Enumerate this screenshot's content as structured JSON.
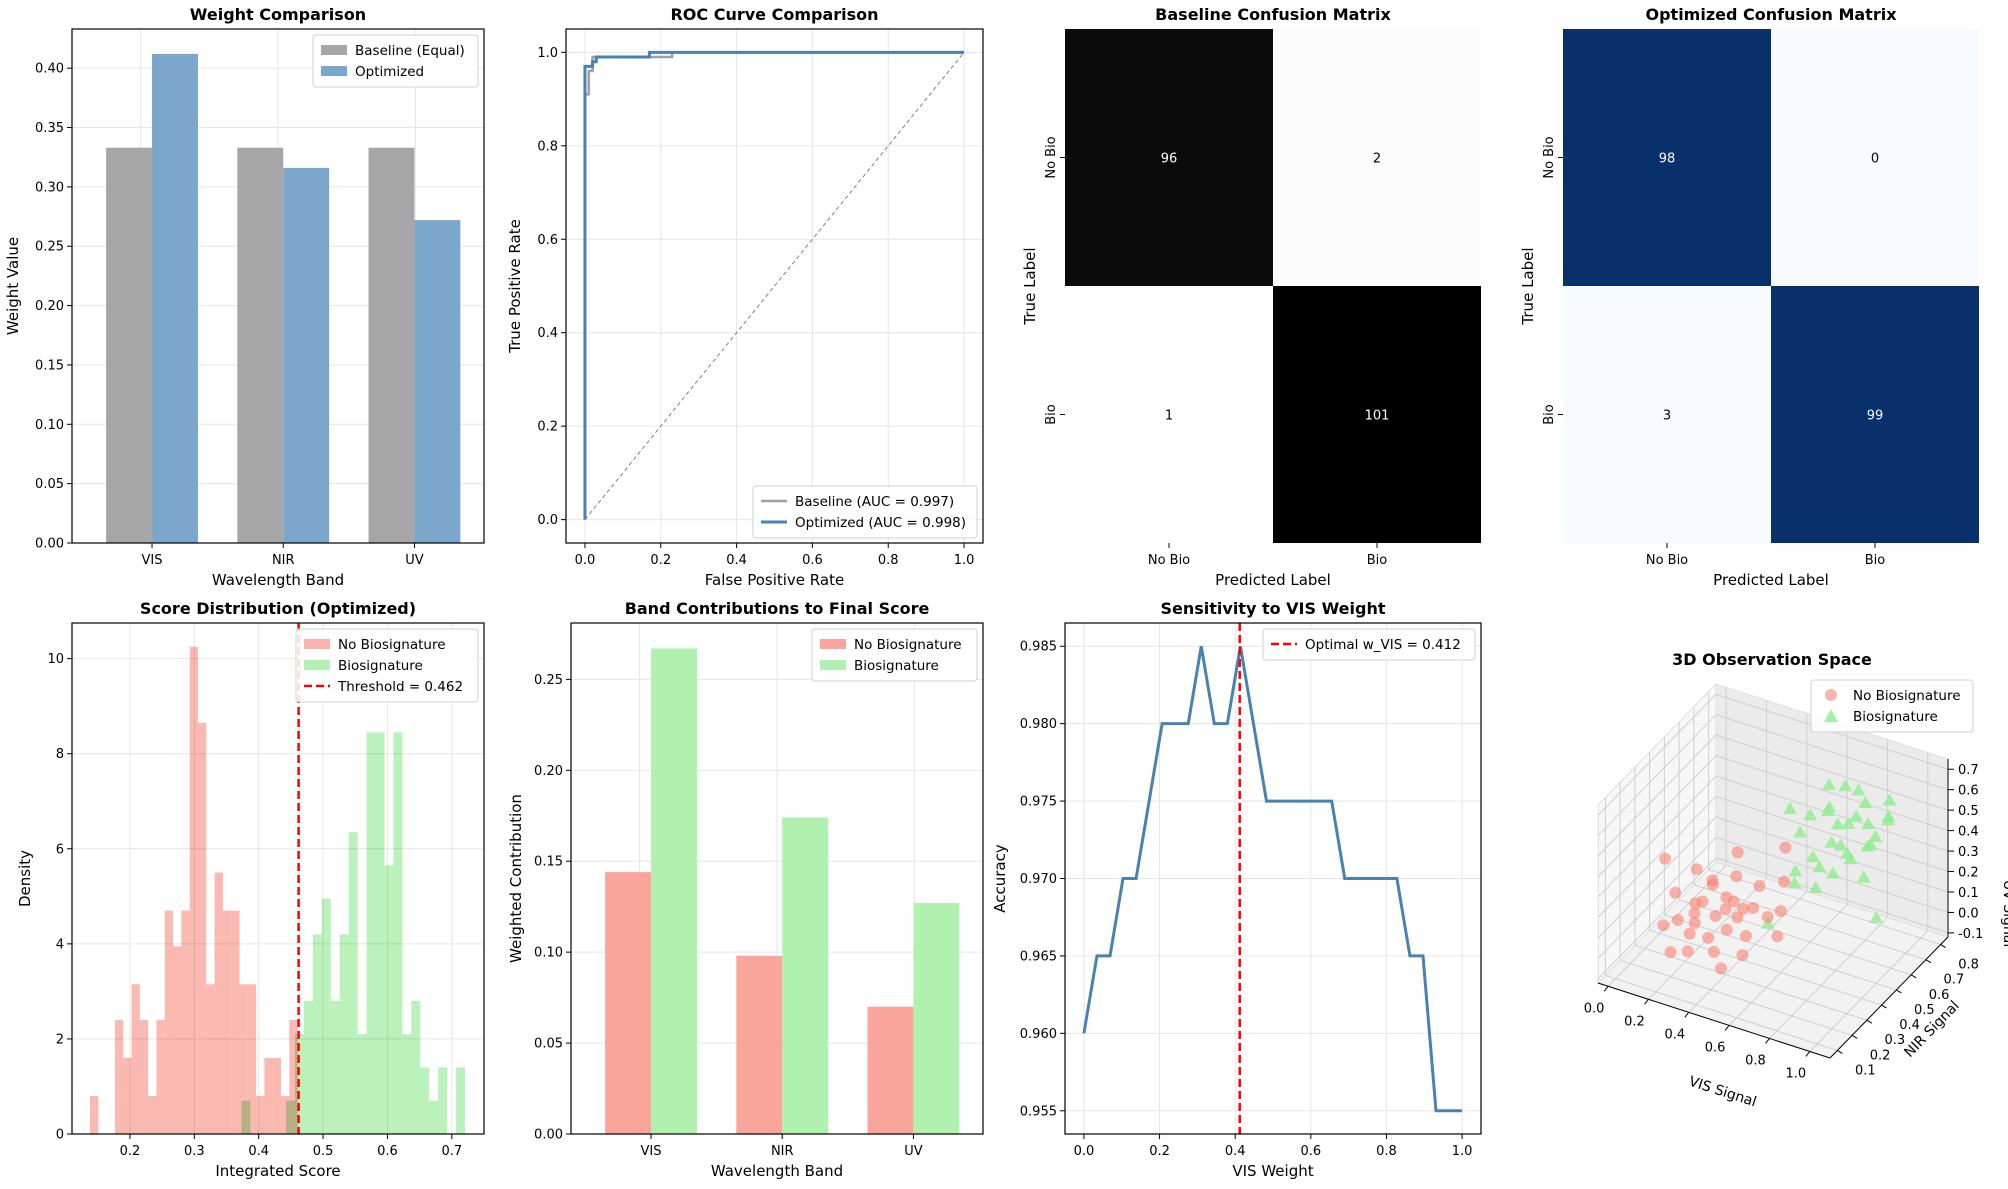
{
  "chart_data": [
    {
      "type": "bar",
      "title": "Weight Comparison",
      "xlabel": "Wavelength Band",
      "ylabel": "Weight Value",
      "categories": [
        "VIS",
        "NIR",
        "UV"
      ],
      "series": [
        {
          "name": "Baseline (Equal)",
          "values": [
            0.333,
            0.333,
            0.333
          ],
          "color": "#a6a6a6"
        },
        {
          "name": "Optimized",
          "values": [
            0.412,
            0.316,
            0.272
          ],
          "color": "#7ba7cc"
        }
      ],
      "ylim": [
        0,
        0.433
      ],
      "yticks": [
        0.0,
        0.05,
        0.1,
        0.15,
        0.2,
        0.25,
        0.3,
        0.35,
        0.4
      ],
      "grid": true,
      "legend": "top-right"
    },
    {
      "type": "line",
      "title": "ROC Curve Comparison",
      "xlabel": "False Positive Rate",
      "ylabel": "True Positive Rate",
      "xlim": [
        -0.05,
        1.05
      ],
      "ylim": [
        -0.05,
        1.05
      ],
      "xticks": [
        0.0,
        0.2,
        0.4,
        0.6,
        0.8,
        1.0
      ],
      "yticks": [
        0.0,
        0.2,
        0.4,
        0.6,
        0.8,
        1.0
      ],
      "series": [
        {
          "name": "Baseline (AUC = 0.997)",
          "color": "#a0a0a0",
          "points": [
            [
              0,
              0
            ],
            [
              0,
              0.91
            ],
            [
              0.01,
              0.91
            ],
            [
              0.01,
              0.96
            ],
            [
              0.02,
              0.96
            ],
            [
              0.02,
              0.99
            ],
            [
              0.23,
              0.99
            ],
            [
              0.23,
              1.0
            ],
            [
              1.0,
              1.0
            ]
          ]
        },
        {
          "name": "Optimized (AUC = 0.998)",
          "color": "#4682b4",
          "points": [
            [
              0,
              0
            ],
            [
              0,
              0.97
            ],
            [
              0.02,
              0.97
            ],
            [
              0.02,
              0.98
            ],
            [
              0.03,
              0.98
            ],
            [
              0.03,
              0.99
            ],
            [
              0.17,
              0.99
            ],
            [
              0.17,
              1.0
            ],
            [
              1.0,
              1.0
            ]
          ]
        }
      ],
      "reference_line": [
        [
          0,
          0
        ],
        [
          1,
          1
        ]
      ],
      "grid": true,
      "legend": "bottom-right"
    },
    {
      "type": "heatmap",
      "title": "Baseline Confusion Matrix",
      "xlabel": "Predicted Label",
      "ylabel": "True Label",
      "labels": [
        "No Bio",
        "Bio"
      ],
      "matrix": [
        [
          96,
          2
        ],
        [
          1,
          101
        ]
      ],
      "colormap": "Greys"
    },
    {
      "type": "heatmap",
      "title": "Optimized Confusion Matrix",
      "xlabel": "Predicted Label",
      "ylabel": "True Label",
      "labels": [
        "No Bio",
        "Bio"
      ],
      "matrix": [
        [
          98,
          0
        ],
        [
          3,
          99
        ]
      ],
      "colormap": "Blues"
    },
    {
      "type": "bar",
      "subtype": "histogram",
      "title": "Score Distribution (Optimized)",
      "xlabel": "Integrated Score",
      "ylabel": "Density",
      "xlim": [
        0.11,
        0.75
      ],
      "ylim": [
        0,
        10.75
      ],
      "xticks": [
        0.2,
        0.3,
        0.4,
        0.5,
        0.6,
        0.7
      ],
      "yticks": [
        0,
        2,
        4,
        6,
        8,
        10
      ],
      "series": [
        {
          "name": "No Biosignature",
          "color": "#fab2aa",
          "bin_start": 0.138,
          "bin_width": 0.0129,
          "values": [
            0.8,
            0,
            0,
            2.4,
            1.6,
            3.15,
            2.4,
            0.8,
            2.4,
            4.7,
            3.95,
            4.7,
            10.25,
            8.65,
            3.15,
            5.5,
            4.7,
            4.7,
            3.15,
            3.15,
            0.8,
            1.6,
            1.6,
            0.8,
            2.4
          ]
        },
        {
          "name": "Biosignature",
          "color": "#b4f0b4",
          "bin_start": 0.373,
          "bin_width": 0.0139,
          "values": [
            0.7,
            0,
            0,
            0,
            0,
            0.7,
            2.1,
            2.8,
            4.2,
            4.95,
            2.8,
            4.2,
            6.35,
            2.1,
            8.45,
            8.45,
            5.65,
            8.45,
            2.1,
            2.8,
            1.4,
            0.7,
            1.4,
            0,
            1.4
          ]
        }
      ],
      "threshold": {
        "name": "Threshold = 0.462",
        "value": 0.462,
        "color": "#ff0000"
      },
      "grid": true,
      "legend": "top-right"
    },
    {
      "type": "bar",
      "title": "Band Contributions to Final Score",
      "xlabel": "Wavelength Band",
      "ylabel": "Weighted Contribution",
      "categories": [
        "VIS",
        "NIR",
        "UV"
      ],
      "series": [
        {
          "name": "No Biosignature",
          "values": [
            0.144,
            0.098,
            0.07
          ],
          "color": "#f9a59c"
        },
        {
          "name": "Biosignature",
          "values": [
            0.267,
            0.174,
            0.127
          ],
          "color": "#b0f1b0"
        }
      ],
      "ylim": [
        0,
        0.281
      ],
      "yticks": [
        0.0,
        0.05,
        0.1,
        0.15,
        0.2,
        0.25
      ],
      "grid": true,
      "legend": "top-right"
    },
    {
      "type": "line",
      "title": "Sensitivity to VIS Weight",
      "xlabel": "VIS Weight",
      "ylabel": "Accuracy",
      "xlim": [
        -0.05,
        1.05
      ],
      "ylim": [
        0.9535,
        0.9865
      ],
      "xticks": [
        0.0,
        0.2,
        0.4,
        0.6,
        0.8,
        1.0
      ],
      "yticks": [
        0.955,
        0.96,
        0.965,
        0.97,
        0.975,
        0.98,
        0.985
      ],
      "x": [
        0,
        0.0345,
        0.069,
        0.1034,
        0.1379,
        0.1724,
        0.2069,
        0.2414,
        0.2759,
        0.3103,
        0.3448,
        0.3793,
        0.4138,
        0.4483,
        0.4828,
        0.5172,
        0.5517,
        0.5862,
        0.6207,
        0.6552,
        0.6897,
        0.7241,
        0.7586,
        0.7931,
        0.8276,
        0.8621,
        0.8966,
        0.931,
        0.9655,
        1.0
      ],
      "values": [
        0.96,
        0.965,
        0.965,
        0.97,
        0.97,
        0.975,
        0.98,
        0.98,
        0.98,
        0.985,
        0.98,
        0.98,
        0.985,
        0.98,
        0.975,
        0.975,
        0.975,
        0.975,
        0.975,
        0.975,
        0.97,
        0.97,
        0.97,
        0.97,
        0.97,
        0.965,
        0.965,
        0.955,
        0.955,
        0.955
      ],
      "color": "#4682b4",
      "optimal": {
        "name": "Optimal w_VIS = 0.412",
        "value": 0.412,
        "color": "#ff0000"
      },
      "grid": true,
      "legend": "top-right"
    },
    {
      "type": "scatter",
      "subtype": "3d",
      "title": "3D Observation Space",
      "xlabel": "VIS Signal",
      "ylabel": "NIR Signal",
      "zlabel": "UV Signal",
      "xticks": [
        0.0,
        0.2,
        0.4,
        0.6,
        0.8,
        1.0
      ],
      "yticks": [
        0.1,
        0.2,
        0.3,
        0.4,
        0.5,
        0.6,
        0.7,
        0.8
      ],
      "zticks": [
        -0.1,
        0.0,
        0.1,
        0.2,
        0.3,
        0.4,
        0.5,
        0.6,
        0.7
      ],
      "xlim": [
        -0.05,
        1.1
      ],
      "ylim": [
        0.05,
        0.85
      ],
      "zlim": [
        -0.12,
        0.75
      ],
      "legend": "top-right",
      "series": [
        {
          "name": "No Biosignature",
          "marker": "circle",
          "color": "#fa8072",
          "points": [
            [
              0.15,
              0.3,
              0.2
            ],
            [
              0.2,
              0.25,
              0.12
            ],
            [
              0.25,
              0.3,
              0.18
            ],
            [
              0.3,
              0.28,
              0.22
            ],
            [
              0.35,
              0.3,
              0.15
            ],
            [
              0.3,
              0.35,
              0.25
            ],
            [
              0.4,
              0.3,
              0.2
            ],
            [
              0.45,
              0.35,
              0.18
            ],
            [
              0.28,
              0.22,
              0.1
            ],
            [
              0.35,
              0.25,
              0.08
            ],
            [
              0.42,
              0.28,
              0.12
            ],
            [
              0.5,
              0.35,
              0.2
            ],
            [
              0.38,
              0.4,
              0.28
            ],
            [
              0.22,
              0.35,
              0.3
            ],
            [
              0.32,
              0.32,
              0.3
            ],
            [
              0.48,
              0.42,
              0.25
            ],
            [
              0.55,
              0.38,
              0.15
            ],
            [
              0.4,
              0.22,
              0.05
            ],
            [
              0.3,
              0.18,
              0.05
            ],
            [
              0.5,
              0.3,
              0.1
            ],
            [
              0.6,
              0.4,
              0.18
            ],
            [
              0.2,
              0.2,
              0.0
            ],
            [
              0.45,
              0.2,
              0.0
            ],
            [
              0.35,
              0.45,
              0.35
            ],
            [
              0.55,
              0.5,
              0.4
            ],
            [
              0.1,
              0.3,
              0.35
            ],
            [
              0.62,
              0.35,
              0.1
            ],
            [
              0.26,
              0.28,
              0.15
            ],
            [
              0.36,
              0.36,
              0.2
            ],
            [
              0.44,
              0.3,
              0.25
            ],
            [
              0.52,
              0.25,
              0.05
            ],
            [
              0.15,
              0.22,
              0.1
            ],
            [
              0.58,
              0.45,
              0.28
            ],
            [
              0.4,
              0.38,
              0.1
            ],
            [
              0.32,
              0.2,
              0.18
            ]
          ]
        },
        {
          "name": "Biosignature",
          "marker": "triangle",
          "color": "#90ee90",
          "points": [
            [
              0.6,
              0.6,
              0.5
            ],
            [
              0.7,
              0.65,
              0.45
            ],
            [
              0.75,
              0.6,
              0.4
            ],
            [
              0.8,
              0.7,
              0.55
            ],
            [
              0.65,
              0.55,
              0.35
            ],
            [
              0.85,
              0.65,
              0.5
            ],
            [
              0.7,
              0.7,
              0.6
            ],
            [
              0.9,
              0.6,
              0.45
            ],
            [
              0.55,
              0.6,
              0.4
            ],
            [
              0.75,
              0.55,
              0.3
            ],
            [
              0.8,
              0.6,
              0.35
            ],
            [
              0.65,
              0.65,
              0.5
            ],
            [
              0.85,
              0.7,
              0.4
            ],
            [
              0.95,
              0.65,
              0.55
            ],
            [
              0.6,
              0.5,
              0.3
            ],
            [
              0.7,
              0.5,
              0.25
            ],
            [
              0.78,
              0.68,
              0.62
            ],
            [
              0.9,
              0.72,
              0.5
            ],
            [
              0.5,
              0.6,
              0.5
            ],
            [
              0.72,
              0.58,
              0.42
            ],
            [
              0.82,
              0.55,
              0.42
            ],
            [
              0.68,
              0.62,
              0.55
            ],
            [
              0.88,
              0.58,
              0.3
            ],
            [
              1.0,
              0.5,
              0.2
            ],
            [
              0.62,
              0.7,
              0.58
            ],
            [
              0.76,
              0.64,
              0.48
            ],
            [
              0.58,
              0.52,
              0.22
            ],
            [
              0.84,
              0.66,
              0.38
            ],
            [
              0.66,
              0.58,
              0.28
            ],
            [
              0.92,
              0.7,
              0.6
            ],
            [
              0.5,
              0.45,
              0.05
            ],
            [
              0.74,
              0.72,
              0.45
            ]
          ]
        }
      ]
    }
  ]
}
